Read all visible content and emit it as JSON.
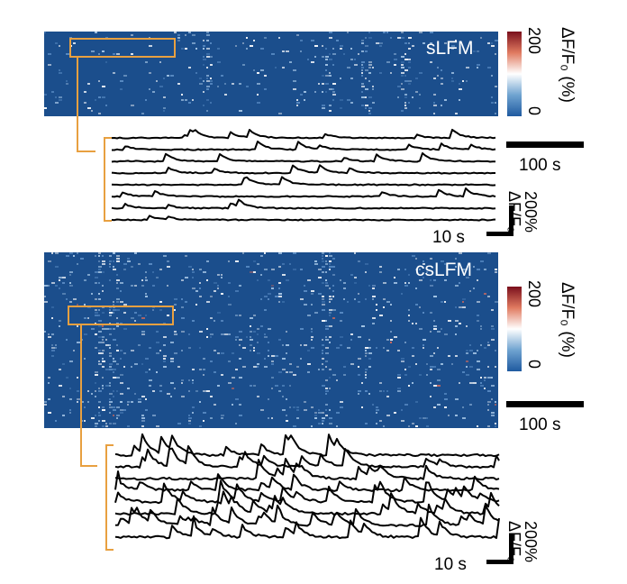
{
  "panels": [
    {
      "title": "sLFM",
      "colorbar": {
        "label": "ΔF/F₀ (%)",
        "max": "200",
        "min": "0"
      },
      "scale_bar_label": "100 s",
      "inset_time_label": "10 s",
      "inset_amp_label": "200% ΔF/F₀",
      "trace_count": 8
    },
    {
      "title": "csLFM",
      "colorbar": {
        "label": "ΔF/F₀ (%)",
        "max": "200",
        "min": "0"
      },
      "scale_bar_label": "100 s",
      "inset_time_label": "10 s",
      "inset_amp_label": "200% ΔF/F₀",
      "trace_count": 8
    }
  ],
  "colors": {
    "heatmap_bg": "#1b4e8c",
    "highlight_box": "#e8a040",
    "trace": "#000000",
    "colormap_low": "#1f5aa0",
    "colormap_mid": "#ffffff",
    "colormap_high": "#7a0f1c"
  }
}
